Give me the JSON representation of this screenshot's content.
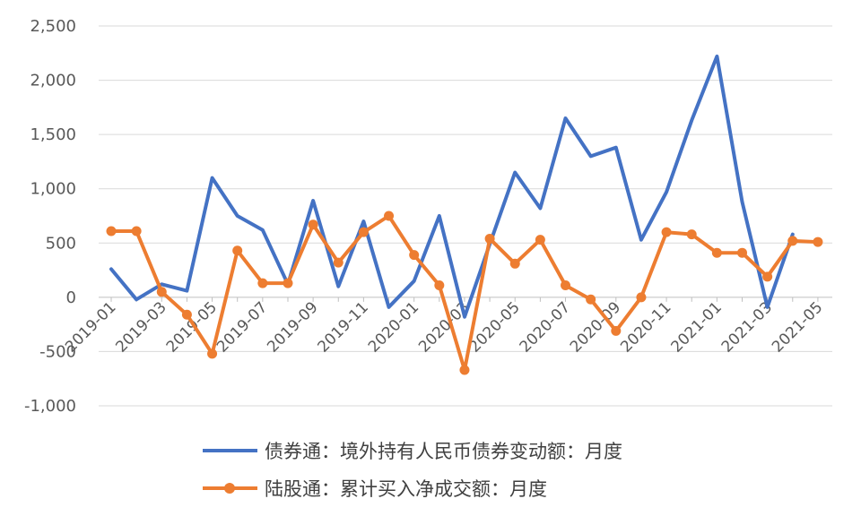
{
  "chart_data": {
    "type": "line",
    "title": "",
    "xlabel": "",
    "ylabel": "",
    "ylim": [
      -1000,
      2500
    ],
    "yticks": [
      -1000,
      -500,
      0,
      500,
      1000,
      1500,
      2000,
      2500
    ],
    "ytick_labels": [
      "-1,000",
      "-500",
      "0",
      "500",
      "1,000",
      "1,500",
      "2,000",
      "2,500"
    ],
    "categories": [
      "2019-01",
      "2019-02",
      "2019-03",
      "2019-04",
      "2019-05",
      "2019-06",
      "2019-07",
      "2019-08",
      "2019-09",
      "2019-10",
      "2019-11",
      "2019-12",
      "2020-01",
      "2020-02",
      "2020-03",
      "2020-04",
      "2020-05",
      "2020-06",
      "2020-07",
      "2020-08",
      "2020-09",
      "2020-10",
      "2020-11",
      "2020-12",
      "2021-01",
      "2021-02",
      "2021-03",
      "2021-04",
      "2021-05"
    ],
    "xtick_labels": [
      "2019-01",
      "2019-03",
      "2019-05",
      "2019-07",
      "2019-09",
      "2019-11",
      "2020-01",
      "2020-03",
      "2020-05",
      "2020-07",
      "2020-09",
      "2020-11",
      "2021-01",
      "2021-03",
      "2021-05"
    ],
    "grid": true,
    "legend_position": "bottom",
    "series": [
      {
        "name": "债券通：境外持有人民币债券变动额：月度",
        "color": "#4472C4",
        "marker": "none",
        "values": [
          260,
          -20,
          120,
          60,
          1100,
          750,
          620,
          120,
          890,
          100,
          700,
          -90,
          150,
          750,
          -180,
          490,
          1150,
          820,
          1650,
          1300,
          1380,
          530,
          970,
          1630,
          2220,
          880,
          -90,
          580,
          null
        ]
      },
      {
        "name": "陆股通：累计买入净成交额：月度",
        "color": "#ED7D31",
        "marker": "circle",
        "values": [
          610,
          610,
          50,
          -160,
          -520,
          430,
          130,
          130,
          670,
          320,
          600,
          750,
          390,
          110,
          -670,
          540,
          310,
          530,
          110,
          -20,
          -310,
          0,
          600,
          580,
          410,
          410,
          190,
          520,
          510
        ]
      }
    ]
  }
}
